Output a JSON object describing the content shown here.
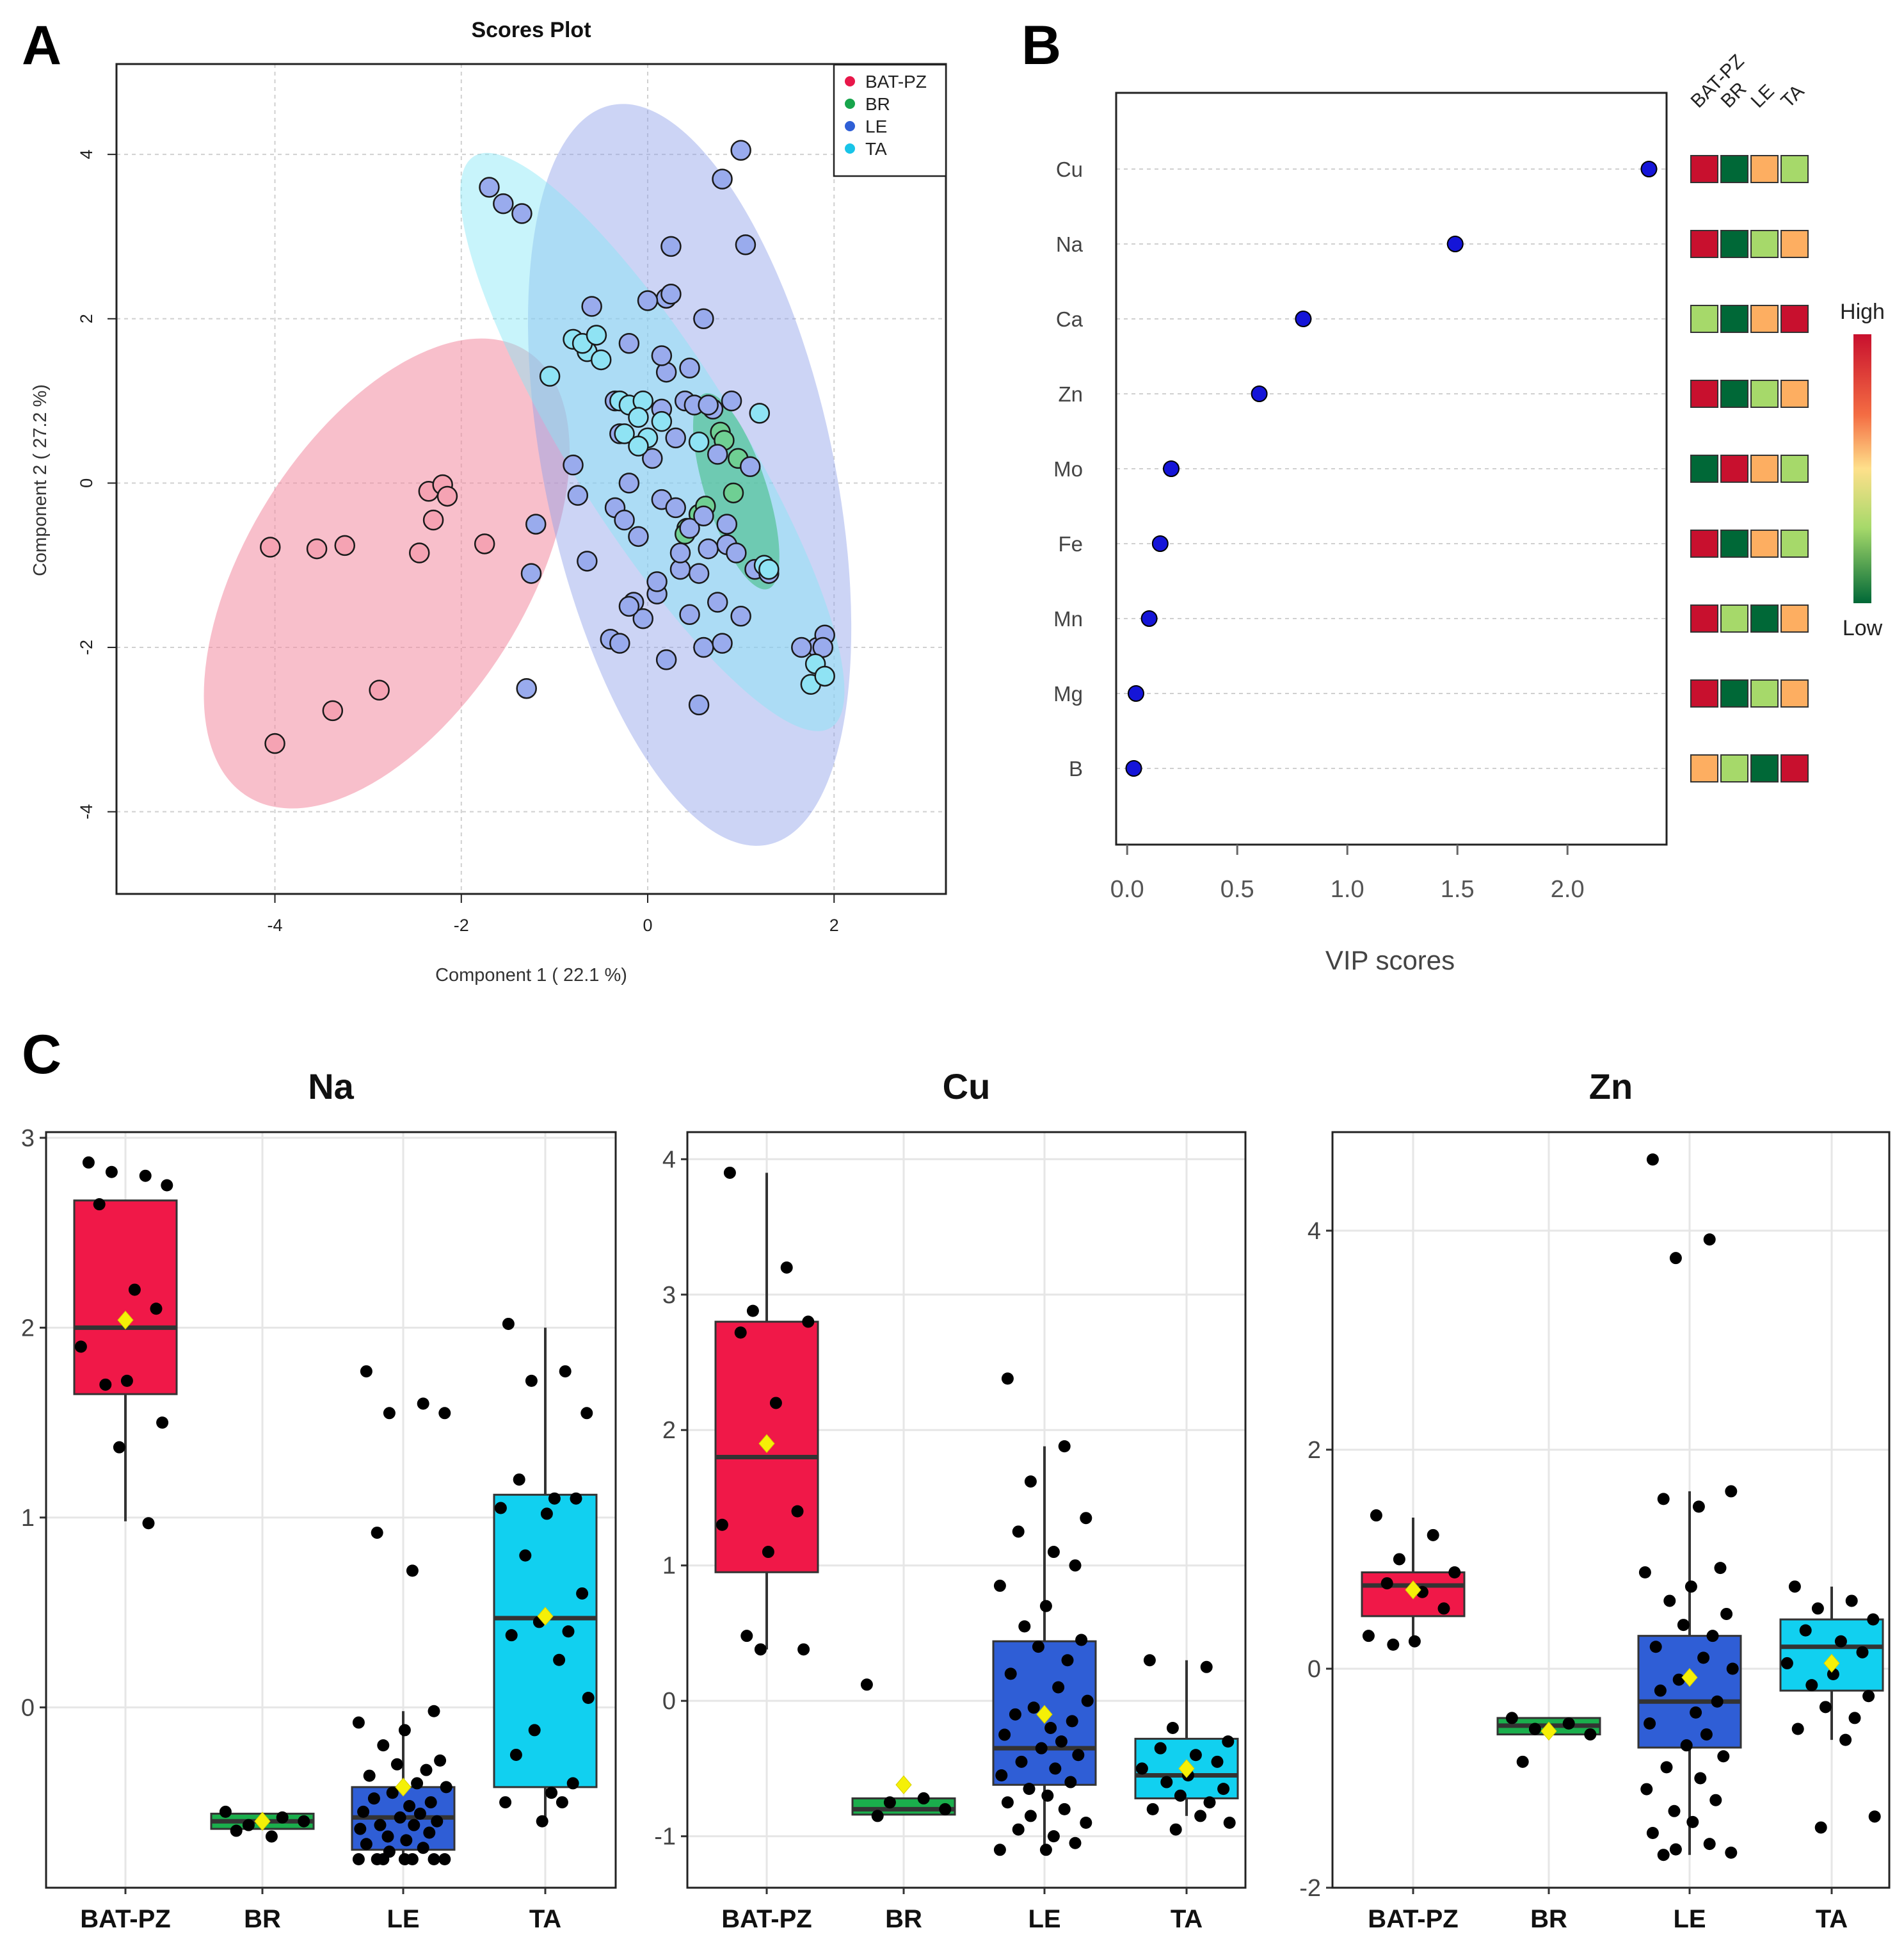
{
  "panels": {
    "a": "A",
    "b": "B",
    "c": "C"
  },
  "scores_plot": {
    "title": "Scores Plot",
    "xlabel": "Component 1 ( 22.1 %)",
    "ylabel": "Component 2 ( 27.2 %)",
    "xticks": [
      "-4",
      "-2",
      "0",
      "2"
    ],
    "yticks": [
      "-4",
      "-2",
      "0",
      "2",
      "4"
    ],
    "legend": [
      {
        "label": "BAT-PZ",
        "color": "#e8174a"
      },
      {
        "label": "BR",
        "color": "#17a54c"
      },
      {
        "label": "LE",
        "color": "#2f5fd6"
      },
      {
        "label": "TA",
        "color": "#18c4e8"
      }
    ]
  },
  "vip_plot": {
    "xlabel": "VIP scores",
    "xticks": [
      "0.0",
      "0.5",
      "1.0",
      "1.5",
      "2.0"
    ],
    "group_headers": [
      "BAT-PZ",
      "BR",
      "LE",
      "TA"
    ],
    "scale_high": "High",
    "scale_low": "Low"
  },
  "box_titles": [
    "Na",
    "Cu",
    "Zn"
  ],
  "box_categories": [
    "BAT-PZ",
    "BR",
    "LE",
    "TA"
  ],
  "box_yticks": [
    [
      "0",
      "1",
      "2",
      "3"
    ],
    [
      "-1",
      "0",
      "1",
      "2",
      "3",
      "4"
    ],
    [
      "-2",
      "0",
      "2",
      "4"
    ]
  ],
  "chart_data": [
    {
      "type": "scatter",
      "title": "Scores Plot",
      "xlabel": "Component 1 ( 22.1 %)",
      "ylabel": "Component 2 ( 27.2 %)",
      "xlim": [
        -5.7,
        3.2
      ],
      "ylim": [
        -5.0,
        5.1
      ],
      "confidence_ellipses": [
        {
          "group": "BAT-PZ",
          "center": [
            -2.8,
            -1.1
          ],
          "semi_axes": [
            1.5,
            3.2
          ],
          "angle_deg": 32
        },
        {
          "group": "LE",
          "center": [
            0.45,
            0.1
          ],
          "semi_axes": [
            1.55,
            4.6
          ],
          "angle_deg": -12
        },
        {
          "group": "TA",
          "center": [
            0.05,
            0.5
          ],
          "semi_axes": [
            0.9,
            4.1
          ],
          "angle_deg": -32
        },
        {
          "group": "BR",
          "center": [
            0.95,
            -0.1
          ],
          "semi_axes": [
            0.33,
            1.25
          ],
          "angle_deg": -18
        }
      ],
      "series": [
        {
          "name": "BAT-PZ",
          "x": [
            -4.05,
            -3.55,
            -3.25,
            -2.45,
            -2.35,
            -2.2,
            -2.3,
            -2.15,
            -1.75,
            -4.0,
            -3.38,
            -2.88
          ],
          "y": [
            -0.78,
            -0.8,
            -0.76,
            -0.85,
            -0.1,
            -0.02,
            -0.45,
            -0.16,
            -0.74,
            -3.17,
            -2.77,
            -2.52
          ]
        },
        {
          "name": "BR",
          "x": [
            0.78,
            0.82,
            0.97,
            0.92,
            0.42,
            0.4,
            0.55,
            0.62
          ],
          "y": [
            0.62,
            0.52,
            0.3,
            -0.12,
            -0.55,
            -0.62,
            -0.38,
            -0.28
          ]
        },
        {
          "name": "LE",
          "x": [
            -1.7,
            -1.55,
            -1.35,
            1.0,
            0.8,
            0.25,
            1.05,
            0.2,
            0.25,
            0.6,
            -0.6,
            0.0,
            -0.8,
            -0.2,
            -0.35,
            -0.3,
            0.15,
            0.4,
            0.5,
            0.7,
            0.9,
            1.1,
            -0.75,
            -0.25,
            -0.1,
            0.15,
            0.3,
            0.45,
            0.65,
            0.85,
            -0.65,
            -0.15,
            0.1,
            0.35,
            0.55,
            0.75,
            0.95,
            1.15,
            1.3,
            -0.4,
            -0.05,
            0.2,
            0.45,
            0.6,
            0.8,
            1.0,
            -0.3,
            -0.2,
            0.1,
            0.35,
            0.6,
            0.85,
            -0.35,
            0.2,
            0.45,
            0.65,
            1.82,
            1.65,
            1.9,
            1.88,
            -1.2,
            -1.25,
            0.55,
            -1.3,
            0.05,
            0.3,
            0.75,
            -0.2,
            0.15
          ],
          "y": [
            3.6,
            3.4,
            3.28,
            4.05,
            3.7,
            2.88,
            2.9,
            2.25,
            2.3,
            2.0,
            2.15,
            2.22,
            0.22,
            0.0,
            -0.3,
            0.6,
            0.9,
            1.0,
            0.95,
            0.9,
            1.0,
            0.2,
            -0.15,
            -0.45,
            -0.65,
            -0.2,
            -0.3,
            -0.55,
            -0.8,
            -0.75,
            -0.95,
            -1.45,
            -1.35,
            -1.05,
            -1.1,
            -1.45,
            -0.85,
            -1.05,
            -1.1,
            -1.9,
            -1.65,
            -2.15,
            -1.6,
            -2.0,
            -1.95,
            -1.62,
            -1.95,
            -1.5,
            -1.2,
            -0.85,
            -0.4,
            -0.5,
            1.0,
            1.35,
            1.4,
            0.95,
            -2.0,
            -2.0,
            -1.85,
            -2.0,
            -0.5,
            -1.1,
            -2.7,
            -2.5,
            0.3,
            0.55,
            0.35,
            1.7,
            1.55
          ]
        },
        {
          "name": "TA",
          "x": [
            -0.8,
            -0.65,
            -0.7,
            -0.55,
            -0.5,
            -1.05,
            -0.3,
            -0.2,
            -0.05,
            -0.1,
            -0.25,
            0.0,
            0.15,
            0.55,
            1.2,
            1.25,
            1.3,
            1.8,
            1.75,
            1.9,
            -0.1
          ],
          "y": [
            1.75,
            1.6,
            1.7,
            1.8,
            1.5,
            1.3,
            1.0,
            0.95,
            1.0,
            0.8,
            0.6,
            0.55,
            0.75,
            0.5,
            0.85,
            -1.0,
            -1.05,
            -2.2,
            -2.45,
            -2.35,
            0.45
          ]
        }
      ]
    },
    {
      "type": "scatter",
      "xlabel": "VIP scores",
      "xlim": [
        -0.05,
        2.45
      ],
      "categories": [
        "Cu",
        "Na",
        "Ca",
        "Zn",
        "Mo",
        "Fe",
        "Mn",
        "Mg",
        "B"
      ],
      "values": [
        2.37,
        1.49,
        0.8,
        0.6,
        0.2,
        0.15,
        0.1,
        0.04,
        0.03
      ],
      "heatmap": {
        "columns": [
          "BAT-PZ",
          "BR",
          "LE",
          "TA"
        ],
        "colors": [
          [
            "#c8102e",
            "#006837",
            "#fdae61",
            "#a6d96a"
          ],
          [
            "#c8102e",
            "#006837",
            "#a6d96a",
            "#fdae61"
          ],
          [
            "#a6d96a",
            "#006837",
            "#fdae61",
            "#c8102e"
          ],
          [
            "#c8102e",
            "#006837",
            "#a6d96a",
            "#fdae61"
          ],
          [
            "#006837",
            "#c8102e",
            "#fdae61",
            "#a6d96a"
          ],
          [
            "#c8102e",
            "#006837",
            "#fdae61",
            "#a6d96a"
          ],
          [
            "#c8102e",
            "#a6d96a",
            "#006837",
            "#fdae61"
          ],
          [
            "#c8102e",
            "#006837",
            "#a6d96a",
            "#fdae61"
          ],
          [
            "#fdae61",
            "#a6d96a",
            "#006837",
            "#c8102e"
          ]
        ]
      }
    },
    {
      "type": "box",
      "title": "Na",
      "categories": [
        "BAT-PZ",
        "BR",
        "LE",
        "TA"
      ],
      "ylim": [
        -0.95,
        3.03
      ],
      "box_colors": [
        "#f01848",
        "#1aae4c",
        "#2f5ed6",
        "#11d0f0"
      ],
      "boxes": [
        {
          "q1": 1.65,
          "median": 2.0,
          "q3": 2.67,
          "whisker_low": 0.98,
          "whisker_high": 2.67,
          "mean": 2.04
        },
        {
          "q1": -0.64,
          "median": -0.6,
          "q3": -0.56,
          "whisker_low": -0.64,
          "whisker_high": -0.56,
          "mean": -0.6
        },
        {
          "q1": -0.75,
          "median": -0.58,
          "q3": -0.42,
          "whisker_low": -0.8,
          "whisker_high": -0.02,
          "mean": -0.42
        },
        {
          "q1": -0.42,
          "median": 0.47,
          "q3": 1.12,
          "whisker_low": -0.6,
          "whisker_high": 2.0,
          "mean": 0.48
        }
      ],
      "points": [
        [
          2.87,
          2.8,
          2.82,
          2.75,
          2.65,
          2.2,
          2.1,
          1.9,
          1.72,
          1.7,
          1.5,
          1.37,
          0.97
        ],
        [
          -0.55,
          -0.58,
          -0.62,
          -0.6,
          -0.65,
          -0.68
        ],
        [
          1.77,
          1.6,
          1.55,
          1.55,
          0.92,
          0.72,
          -0.02,
          -0.08,
          -0.12,
          -0.2,
          -0.28,
          -0.3,
          -0.33,
          -0.36,
          -0.4,
          -0.42,
          -0.45,
          -0.48,
          -0.5,
          -0.52,
          -0.55,
          -0.56,
          -0.58,
          -0.6,
          -0.62,
          -0.62,
          -0.64,
          -0.66,
          -0.68,
          -0.7,
          -0.72,
          -0.74,
          -0.76,
          -0.8,
          -0.8,
          -0.8,
          -0.8,
          -0.8,
          -0.8,
          -0.8
        ],
        [
          2.02,
          1.77,
          1.72,
          1.55,
          1.2,
          1.1,
          1.1,
          1.05,
          1.02,
          0.8,
          0.6,
          0.45,
          0.4,
          0.38,
          0.25,
          0.05,
          -0.12,
          -0.25,
          -0.4,
          -0.45,
          -0.5,
          -0.5,
          -0.6
        ]
      ]
    },
    {
      "type": "box",
      "title": "Cu",
      "categories": [
        "BAT-PZ",
        "BR",
        "LE",
        "TA"
      ],
      "ylim": [
        -1.38,
        4.2
      ],
      "box_colors": [
        "#f01848",
        "#1aae4c",
        "#2f5ed6",
        "#11d0f0"
      ],
      "boxes": [
        {
          "q1": 0.95,
          "median": 1.8,
          "q3": 2.8,
          "whisker_low": 0.38,
          "whisker_high": 3.9,
          "mean": 1.9
        },
        {
          "q1": -0.84,
          "median": -0.8,
          "q3": -0.72,
          "whisker_low": -0.84,
          "whisker_high": -0.72,
          "mean": -0.62
        },
        {
          "q1": -0.62,
          "median": -0.35,
          "q3": 0.44,
          "whisker_low": -1.1,
          "whisker_high": 1.88,
          "mean": -0.1
        },
        {
          "q1": -0.72,
          "median": -0.55,
          "q3": -0.28,
          "whisker_low": -0.85,
          "whisker_high": 0.3,
          "mean": -0.5
        }
      ],
      "points": [
        [
          3.9,
          3.2,
          2.88,
          2.8,
          2.72,
          2.2,
          1.4,
          1.3,
          1.1,
          0.48,
          0.38,
          0.38
        ],
        [
          0.12,
          -0.72,
          -0.75,
          -0.8,
          -0.85
        ],
        [
          2.38,
          1.88,
          1.62,
          1.35,
          1.25,
          1.1,
          1.0,
          0.85,
          0.7,
          0.55,
          0.45,
          0.4,
          0.3,
          0.2,
          0.1,
          0.0,
          -0.05,
          -0.1,
          -0.15,
          -0.2,
          -0.25,
          -0.3,
          -0.35,
          -0.4,
          -0.45,
          -0.5,
          -0.55,
          -0.6,
          -0.65,
          -0.7,
          -0.75,
          -0.8,
          -0.85,
          -0.9,
          -0.95,
          -1.0,
          -1.05,
          -1.1,
          -1.1
        ],
        [
          0.3,
          0.25,
          -0.2,
          -0.3,
          -0.35,
          -0.4,
          -0.45,
          -0.5,
          -0.55,
          -0.6,
          -0.65,
          -0.7,
          -0.75,
          -0.8,
          -0.85,
          -0.9,
          -0.95
        ]
      ]
    },
    {
      "type": "box",
      "title": "Zn",
      "categories": [
        "BAT-PZ",
        "BR",
        "LE",
        "TA"
      ],
      "ylim": [
        -2.0,
        4.9
      ],
      "box_colors": [
        "#f01848",
        "#1aae4c",
        "#2f5ed6",
        "#11d0f0"
      ],
      "boxes": [
        {
          "q1": 0.48,
          "median": 0.76,
          "q3": 0.88,
          "whisker_low": 0.22,
          "whisker_high": 1.38,
          "mean": 0.72
        },
        {
          "q1": -0.6,
          "median": -0.52,
          "q3": -0.45,
          "whisker_low": -0.6,
          "whisker_high": -0.45,
          "mean": -0.57
        },
        {
          "q1": -0.72,
          "median": -0.3,
          "q3": 0.3,
          "whisker_low": -1.7,
          "whisker_high": 1.62,
          "mean": -0.08
        },
        {
          "q1": -0.2,
          "median": 0.2,
          "q3": 0.45,
          "whisker_low": -0.65,
          "whisker_high": 0.75,
          "mean": 0.05
        }
      ],
      "points": [
        [
          1.4,
          1.22,
          1.0,
          0.88,
          0.78,
          0.7,
          0.55,
          0.3,
          0.25,
          0.22
        ],
        [
          -0.45,
          -0.5,
          -0.55,
          -0.6,
          -0.85
        ],
        [
          4.65,
          3.92,
          3.75,
          1.62,
          1.55,
          1.48,
          0.92,
          0.88,
          0.75,
          0.62,
          0.5,
          0.4,
          0.3,
          0.2,
          0.1,
          0.0,
          -0.1,
          -0.2,
          -0.3,
          -0.4,
          -0.5,
          -0.6,
          -0.7,
          -0.8,
          -0.9,
          -1.0,
          -1.1,
          -1.2,
          -1.3,
          -1.4,
          -1.5,
          -1.6,
          -1.65,
          -1.68,
          -1.7
        ],
        [
          0.75,
          0.62,
          0.55,
          0.45,
          0.35,
          0.25,
          0.15,
          0.05,
          -0.05,
          -0.15,
          -0.25,
          -0.35,
          -0.45,
          -0.55,
          -0.65,
          -1.35,
          -1.45
        ]
      ]
    }
  ]
}
